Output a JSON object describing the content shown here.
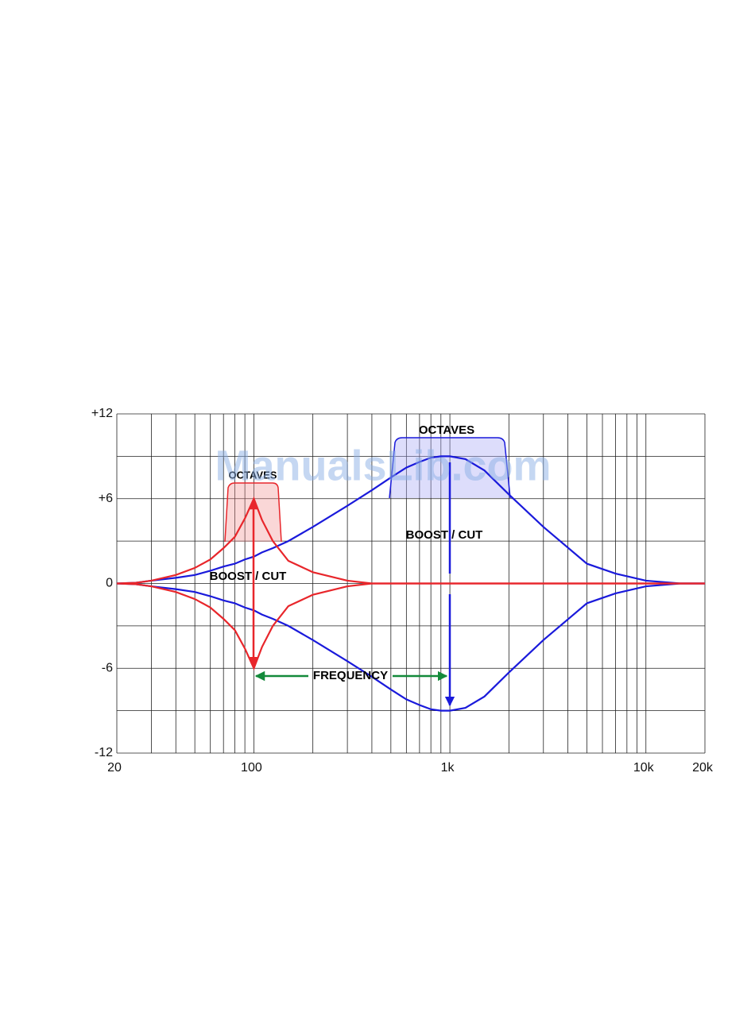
{
  "chart_data": {
    "type": "line",
    "xscale": "log",
    "xlim": [
      20,
      20000
    ],
    "xticks": [
      20,
      100,
      {
        "value": 1000,
        "label": "1k"
      },
      {
        "value": 10000,
        "label": "10k"
      },
      {
        "value": 20000,
        "label": "20k"
      }
    ],
    "xgrid": [
      30,
      40,
      50,
      60,
      70,
      80,
      90,
      200,
      300,
      400,
      500,
      600,
      700,
      800,
      900,
      2000,
      3000,
      4000,
      5000,
      6000,
      7000,
      8000,
      9000
    ],
    "ylim": [
      -12,
      12
    ],
    "yticks": [
      {
        "value": 12,
        "label": "+12"
      },
      {
        "value": 6,
        "label": "+6"
      },
      0,
      -6,
      -12
    ],
    "ygrid": [
      -9,
      -3,
      3,
      9
    ],
    "grid": true,
    "x": [
      20,
      25,
      30,
      40,
      50,
      60,
      70,
      80,
      90,
      100,
      110,
      125,
      150,
      200,
      300,
      400,
      500,
      600,
      700,
      800,
      900,
      1000,
      1200,
      1500,
      2000,
      3000,
      5000,
      7000,
      10000,
      15000,
      20000
    ],
    "series": [
      {
        "color": "#1a1adb",
        "values": [
          0,
          0.05,
          0.2,
          0.4,
          0.6,
          0.9,
          1.2,
          1.4,
          1.7,
          1.9,
          2.2,
          2.5,
          3,
          4,
          5.5,
          6.6,
          7.5,
          8.2,
          8.6,
          8.9,
          9,
          9,
          8.8,
          8,
          6.3,
          4,
          1.4,
          0.7,
          0.2,
          0,
          0
        ]
      },
      {
        "color": "#1a1adb",
        "values": [
          0,
          -0.05,
          -0.2,
          -0.4,
          -0.6,
          -0.9,
          -1.2,
          -1.4,
          -1.7,
          -1.9,
          -2.2,
          -2.5,
          -3,
          -4,
          -5.5,
          -6.6,
          -7.5,
          -8.2,
          -8.6,
          -8.9,
          -9,
          -9,
          -8.8,
          -8,
          -6.3,
          -4,
          -1.4,
          -0.7,
          -0.2,
          0,
          0
        ]
      },
      {
        "color": "#e8262b",
        "values": [
          0,
          0.05,
          0.2,
          0.6,
          1.1,
          1.7,
          2.5,
          3.3,
          4.6,
          6,
          4.5,
          3,
          1.6,
          0.8,
          0.2,
          0,
          0,
          0,
          0,
          0,
          0,
          0,
          0,
          0,
          0,
          0,
          0,
          0,
          0,
          0,
          0
        ]
      },
      {
        "color": "#e8262b",
        "values": [
          0,
          -0.05,
          -0.2,
          -0.6,
          -1.1,
          -1.7,
          -2.5,
          -3.3,
          -4.6,
          -6,
          -4.5,
          -3,
          -1.6,
          -0.8,
          -0.2,
          0,
          0,
          0,
          0,
          0,
          0,
          0,
          0,
          0,
          0,
          0,
          0,
          0,
          0,
          0,
          0
        ]
      }
    ],
    "annotations": [
      "OCTAVES",
      "OCTAVES",
      "BOOST / CUT",
      "BOOST / CUT",
      "FREQUENCY"
    ],
    "watermark": "ManualsLib.com"
  }
}
